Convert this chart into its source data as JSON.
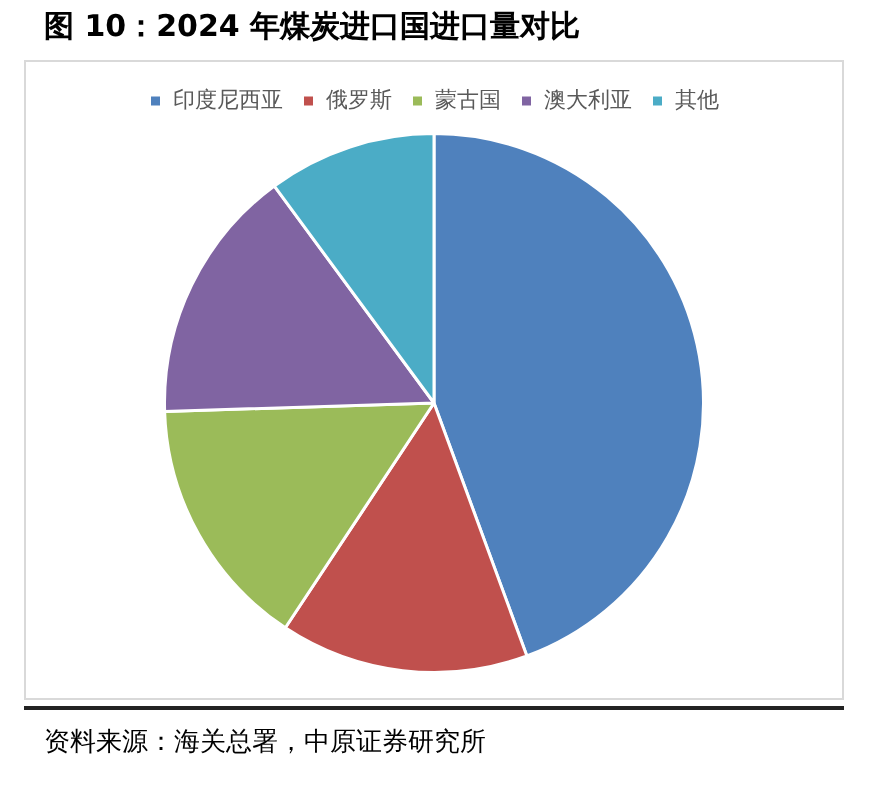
{
  "chart_data": {
    "type": "pie",
    "title": "图 10：2024 年煤炭进口国进口量对比",
    "categories": [
      "印度尼西亚",
      "俄罗斯",
      "蒙古国",
      "澳大利亚",
      "其他"
    ],
    "values": [
      44.4,
      14.9,
      15.2,
      15.4,
      10.1
    ],
    "colors": [
      "#4f81bd",
      "#c0504d",
      "#9bbb59",
      "#8064a2",
      "#4bacc6"
    ],
    "legend": "top",
    "annotations": [
      "资料来源：海关总署，中原证券研究所"
    ]
  }
}
